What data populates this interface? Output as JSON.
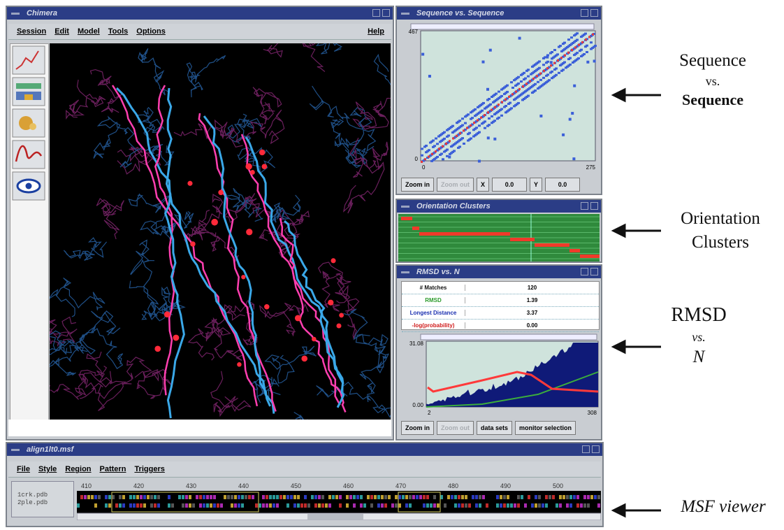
{
  "chimera_window": {
    "title": "Chimera",
    "menu": [
      "Session",
      "Edit",
      "Model",
      "Tools",
      "Options"
    ],
    "help": "Help"
  },
  "sequence_window": {
    "title": "Sequence vs. Sequence",
    "y_max_label": "467",
    "y_min_label": "0",
    "x_min_label": "0",
    "x_max_label": "275",
    "buttons": [
      "Zoom in",
      "Zoom out"
    ],
    "x_label": "X",
    "x_value": "0.0",
    "y_label": "Y",
    "y_value": "0.0"
  },
  "orientation_window": {
    "title": "Orientation Clusters"
  },
  "rmsd_window": {
    "title": "RMSD vs. N",
    "table": [
      [
        "# Matches",
        "120"
      ],
      [
        "RMSD",
        "1.39"
      ],
      [
        "Longest Distance",
        "3.37"
      ],
      [
        "-log(probability)",
        "0.00"
      ]
    ],
    "y_max_label": "31.08",
    "y_min_label": "0.00",
    "x_min_label": "2",
    "x_max_label": "308",
    "buttons": [
      "Zoom in",
      "Zoom out",
      "data sets",
      "monitor selection"
    ]
  },
  "msf_window": {
    "title": "align1lt0.msf",
    "menu": [
      "File",
      "Style",
      "Region",
      "Pattern",
      "Triggers"
    ],
    "ruler": [
      "410",
      "420",
      "430",
      "440",
      "450",
      "460",
      "470",
      "480",
      "490",
      "500"
    ],
    "sequence_names": [
      "1crk.pdb",
      "2ple.pdb"
    ]
  },
  "annotations": [
    [
      "Sequence",
      "vs.",
      "Sequence"
    ],
    [
      "Orientation",
      "Clusters"
    ],
    [
      "RMSD",
      "vs.",
      "N"
    ],
    [
      "MSF viewer"
    ]
  ]
}
